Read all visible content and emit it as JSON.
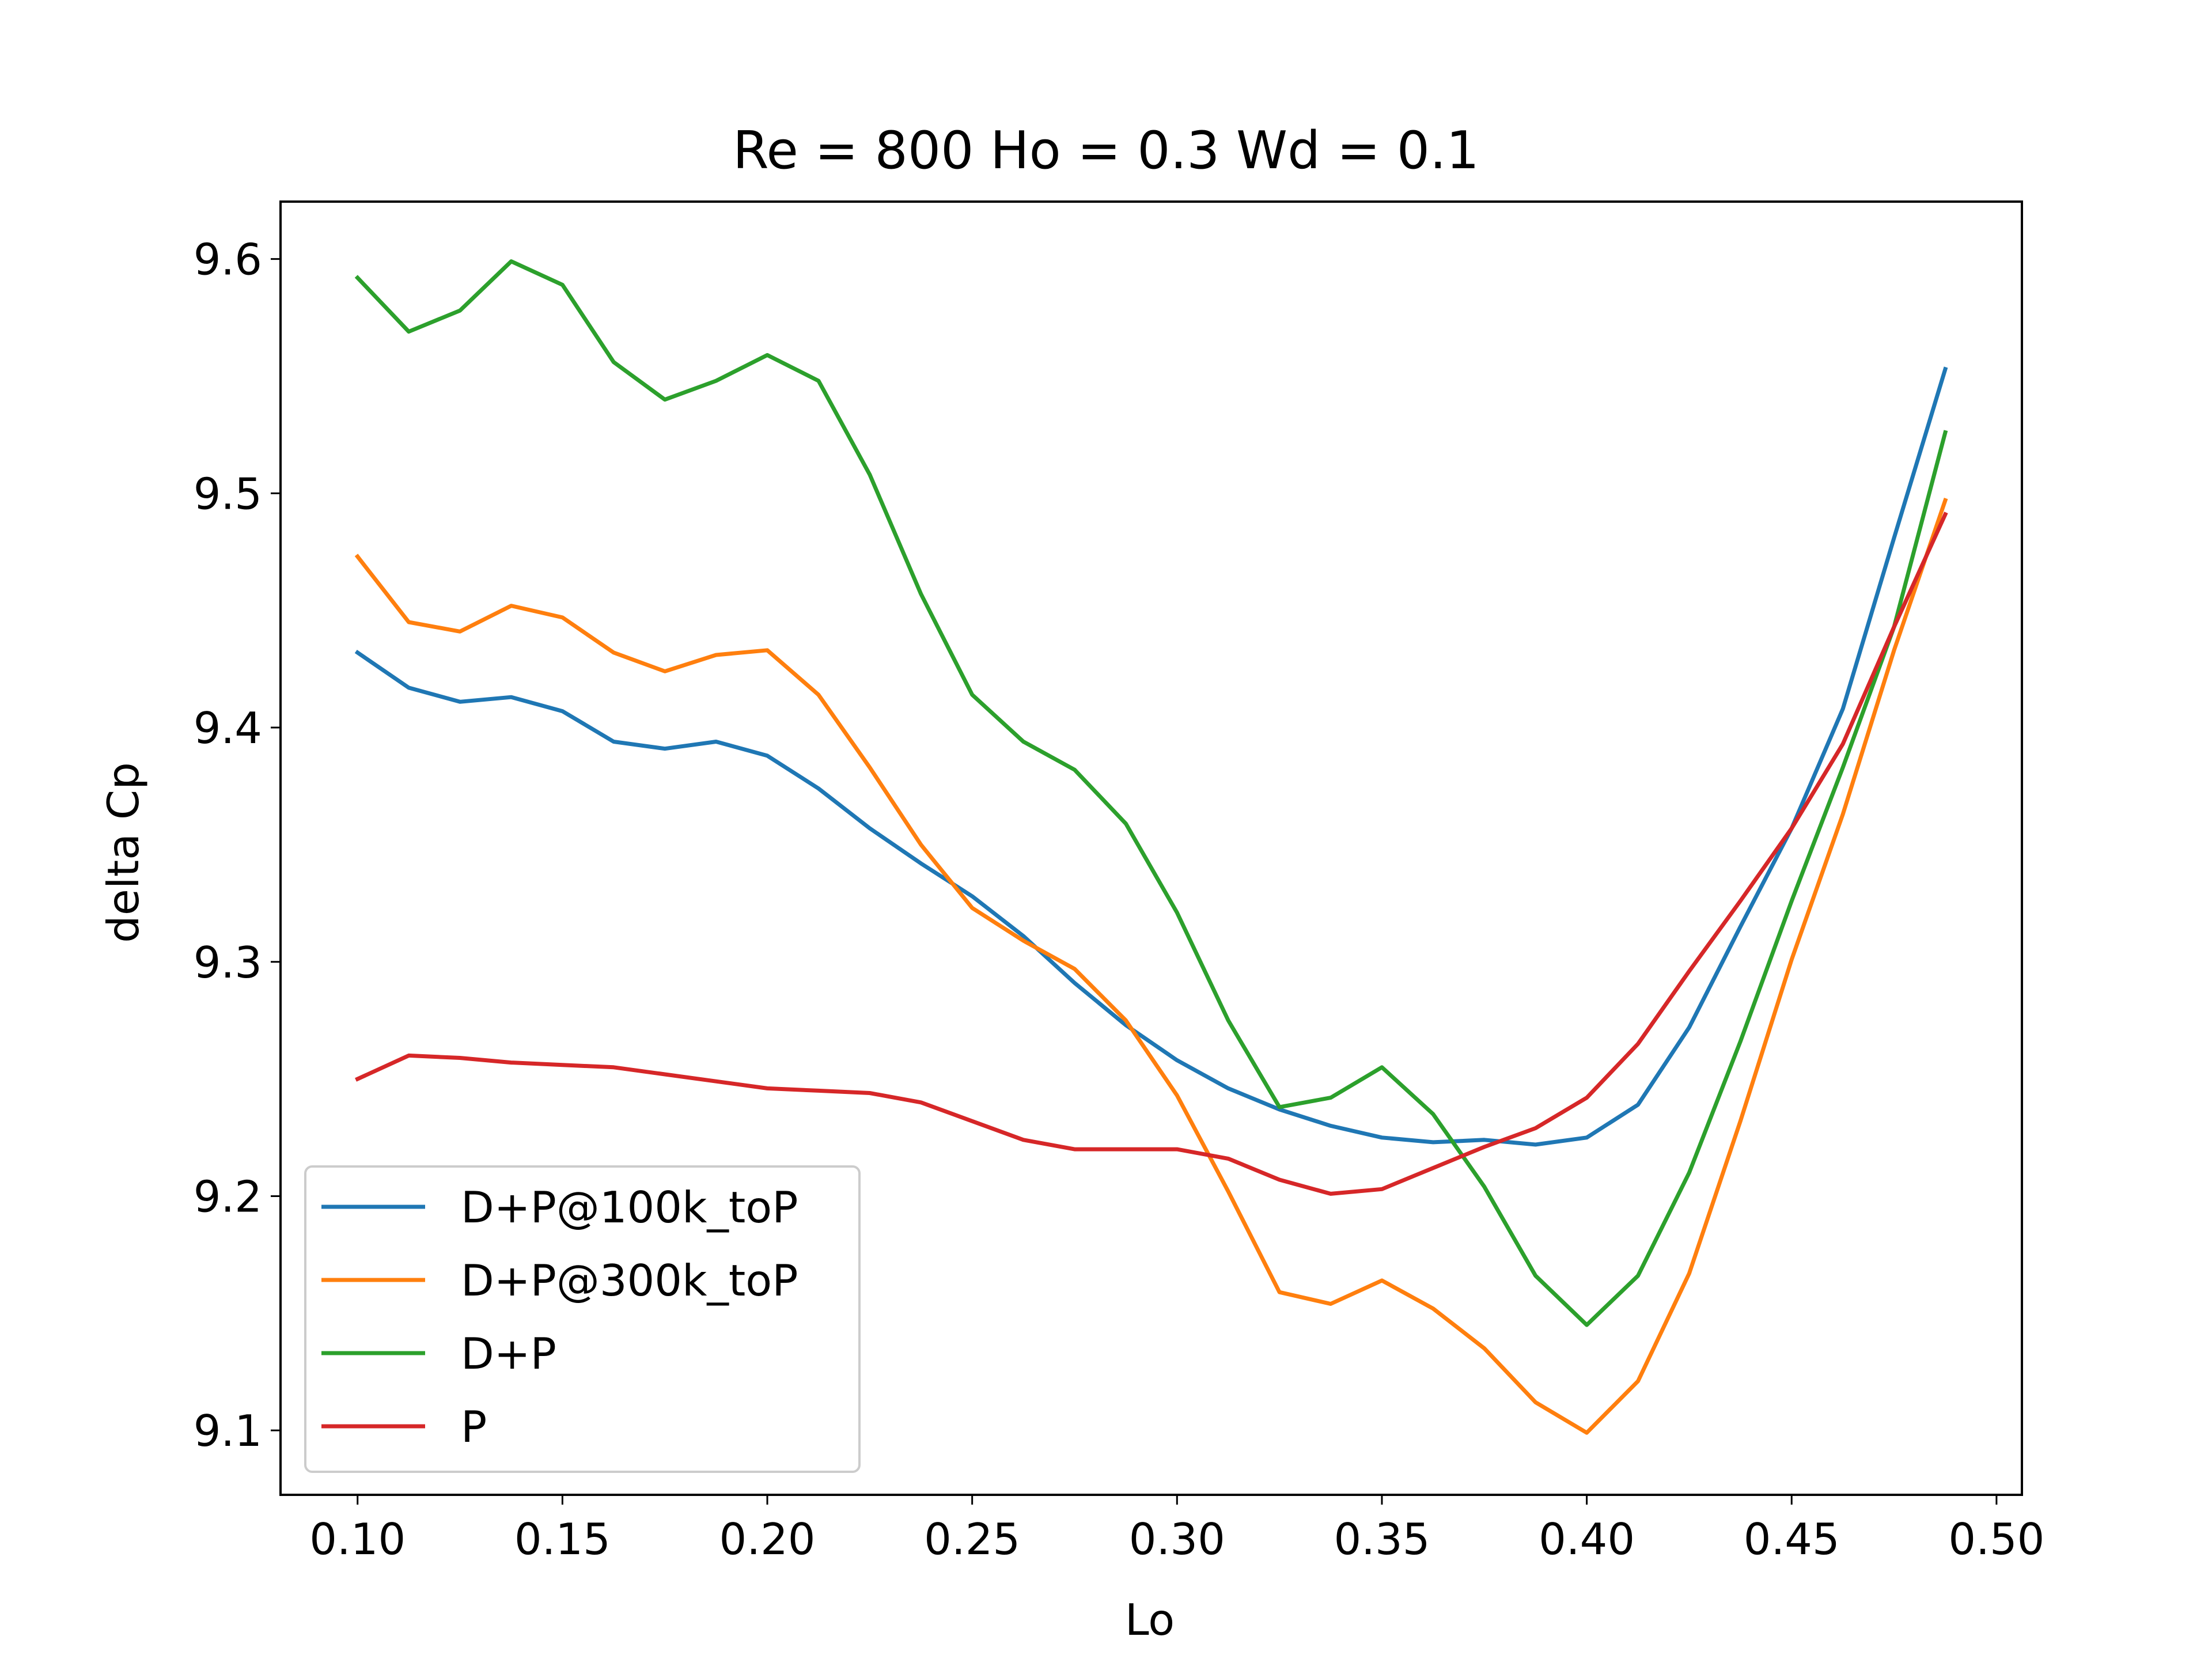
{
  "chart_data": {
    "type": "line",
    "title": "Re = 800 Ho = 0.3 Wd = 0.1",
    "xlabel": "Lo",
    "ylabel": "delta Cp",
    "xlim": [
      0.0812,
      0.5062
    ],
    "ylim": [
      9.0725,
      9.6245
    ],
    "xticks": [
      0.1,
      0.15,
      0.2,
      0.25,
      0.3,
      0.35,
      0.4,
      0.45,
      0.5
    ],
    "xtick_labels": [
      "0.10",
      "0.15",
      "0.20",
      "0.25",
      "0.30",
      "0.35",
      "0.40",
      "0.45",
      "0.50"
    ],
    "yticks": [
      9.1,
      9.2,
      9.3,
      9.4,
      9.5,
      9.6
    ],
    "ytick_labels": [
      "9.1",
      "9.2",
      "9.3",
      "9.4",
      "9.5",
      "9.6"
    ],
    "grid": false,
    "legend_position": "lower-left",
    "x": [
      0.1,
      0.1125,
      0.125,
      0.1375,
      0.15,
      0.1625,
      0.175,
      0.1875,
      0.2,
      0.2125,
      0.225,
      0.2375,
      0.25,
      0.2625,
      0.275,
      0.2875,
      0.3,
      0.3125,
      0.325,
      0.3375,
      0.35,
      0.3625,
      0.375,
      0.3875,
      0.4,
      0.4125,
      0.425,
      0.4375,
      0.45,
      0.4625,
      0.475,
      0.4875
    ],
    "series": [
      {
        "name": "D+P@100k_toP",
        "color": "#1f77b4",
        "values": [
          9.432,
          9.417,
          9.411,
          9.413,
          9.407,
          9.394,
          9.391,
          9.394,
          9.388,
          9.374,
          9.357,
          9.342,
          9.328,
          9.311,
          9.291,
          9.273,
          9.258,
          9.246,
          9.237,
          9.23,
          9.225,
          9.223,
          9.224,
          9.222,
          9.225,
          9.239,
          9.272,
          9.315,
          9.357,
          9.408,
          9.481,
          9.553
        ]
      },
      {
        "name": "D+P@300k_toP",
        "color": "#ff7f0e",
        "values": [
          9.473,
          9.445,
          9.441,
          9.452,
          9.447,
          9.432,
          9.424,
          9.431,
          9.433,
          9.414,
          9.383,
          9.35,
          9.323,
          9.309,
          9.297,
          9.275,
          9.243,
          9.202,
          9.159,
          9.154,
          9.164,
          9.152,
          9.135,
          9.112,
          9.099,
          9.121,
          9.167,
          9.232,
          9.301,
          9.363,
          9.433,
          9.497
        ]
      },
      {
        "name": "D+P",
        "color": "#2ca02c",
        "values": [
          9.592,
          9.569,
          9.578,
          9.599,
          9.589,
          9.556,
          9.54,
          9.548,
          9.559,
          9.548,
          9.508,
          9.457,
          9.414,
          9.394,
          9.382,
          9.359,
          9.321,
          9.275,
          9.238,
          9.242,
          9.255,
          9.235,
          9.204,
          9.166,
          9.145,
          9.166,
          9.21,
          9.266,
          9.326,
          9.383,
          9.443,
          9.526
        ]
      },
      {
        "name": "P",
        "color": "#d62728",
        "values": [
          9.25,
          9.26,
          9.259,
          9.257,
          9.256,
          9.255,
          9.252,
          9.249,
          9.246,
          9.245,
          9.244,
          9.24,
          9.232,
          9.224,
          9.22,
          9.22,
          9.22,
          9.216,
          9.207,
          9.201,
          9.203,
          9.212,
          9.221,
          9.229,
          9.242,
          9.265,
          9.296,
          9.326,
          9.357,
          9.393,
          9.443,
          9.491
        ]
      }
    ]
  }
}
